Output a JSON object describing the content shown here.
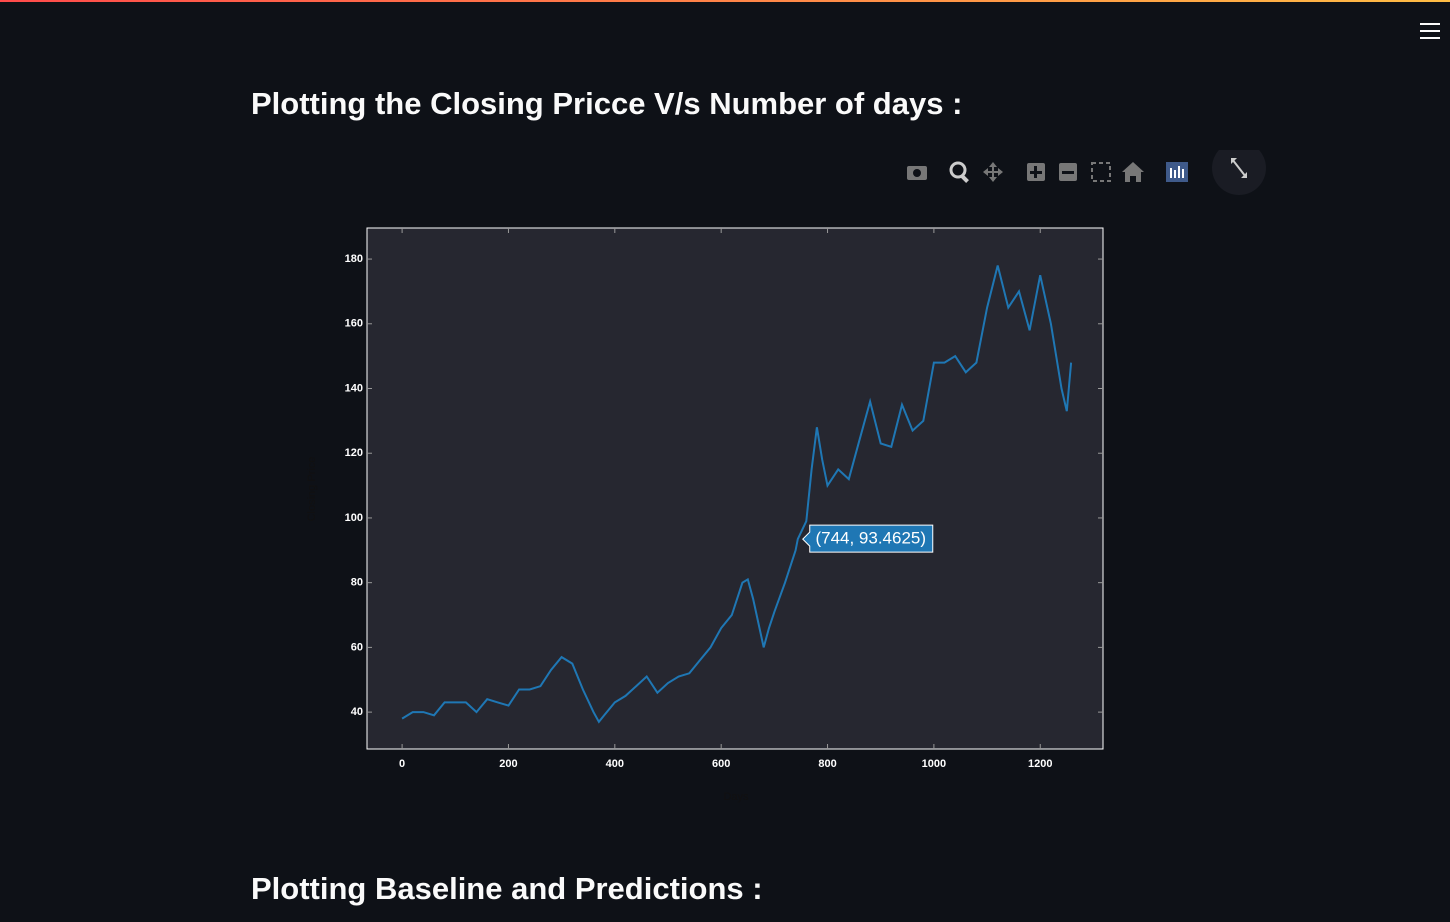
{
  "page": {
    "headings": [
      "Plotting the Closing Pricce V/s Number of days :",
      "Plotting Baseline and Predictions :"
    ]
  },
  "chart_data": {
    "type": "line",
    "xlabel": "Days",
    "ylabel": "Closing Price",
    "x": [
      0,
      20,
      40,
      60,
      80,
      100,
      120,
      140,
      160,
      180,
      200,
      220,
      240,
      260,
      280,
      300,
      320,
      340,
      360,
      370,
      380,
      400,
      420,
      440,
      460,
      480,
      500,
      520,
      540,
      560,
      580,
      600,
      620,
      640,
      650,
      660,
      680,
      690,
      700,
      720,
      740,
      744,
      760,
      770,
      780,
      790,
      800,
      820,
      840,
      860,
      880,
      900,
      920,
      940,
      960,
      980,
      1000,
      1020,
      1040,
      1060,
      1080,
      1100,
      1120,
      1140,
      1160,
      1180,
      1200,
      1220,
      1240,
      1250,
      1258
    ],
    "values": [
      38,
      40,
      40,
      39,
      43,
      43,
      43,
      40,
      44,
      43,
      42,
      47,
      47,
      48,
      53,
      57,
      55,
      47,
      40,
      37,
      39,
      43,
      45,
      48,
      51,
      46,
      49,
      51,
      52,
      56,
      60,
      66,
      70,
      80,
      81,
      75,
      60,
      66,
      71,
      80,
      90,
      93.4625,
      99,
      115,
      128,
      118,
      110,
      115,
      112,
      124,
      136,
      123,
      122,
      135,
      127,
      130,
      148,
      148,
      150,
      145,
      148,
      165,
      178,
      165,
      170,
      158,
      175,
      160,
      140,
      133,
      148
    ],
    "color": "#1f77b4",
    "xlim": [
      -66,
      1318
    ],
    "ylim": [
      28.6,
      189.6
    ],
    "xticks": [
      0,
      200,
      400,
      600,
      800,
      1000,
      1200
    ],
    "yticks": [
      40,
      60,
      80,
      100,
      120,
      140,
      160,
      180
    ],
    "annotations": [
      {
        "text": "(744, 93.4625)",
        "x": 744,
        "y": 93.4625
      }
    ]
  }
}
